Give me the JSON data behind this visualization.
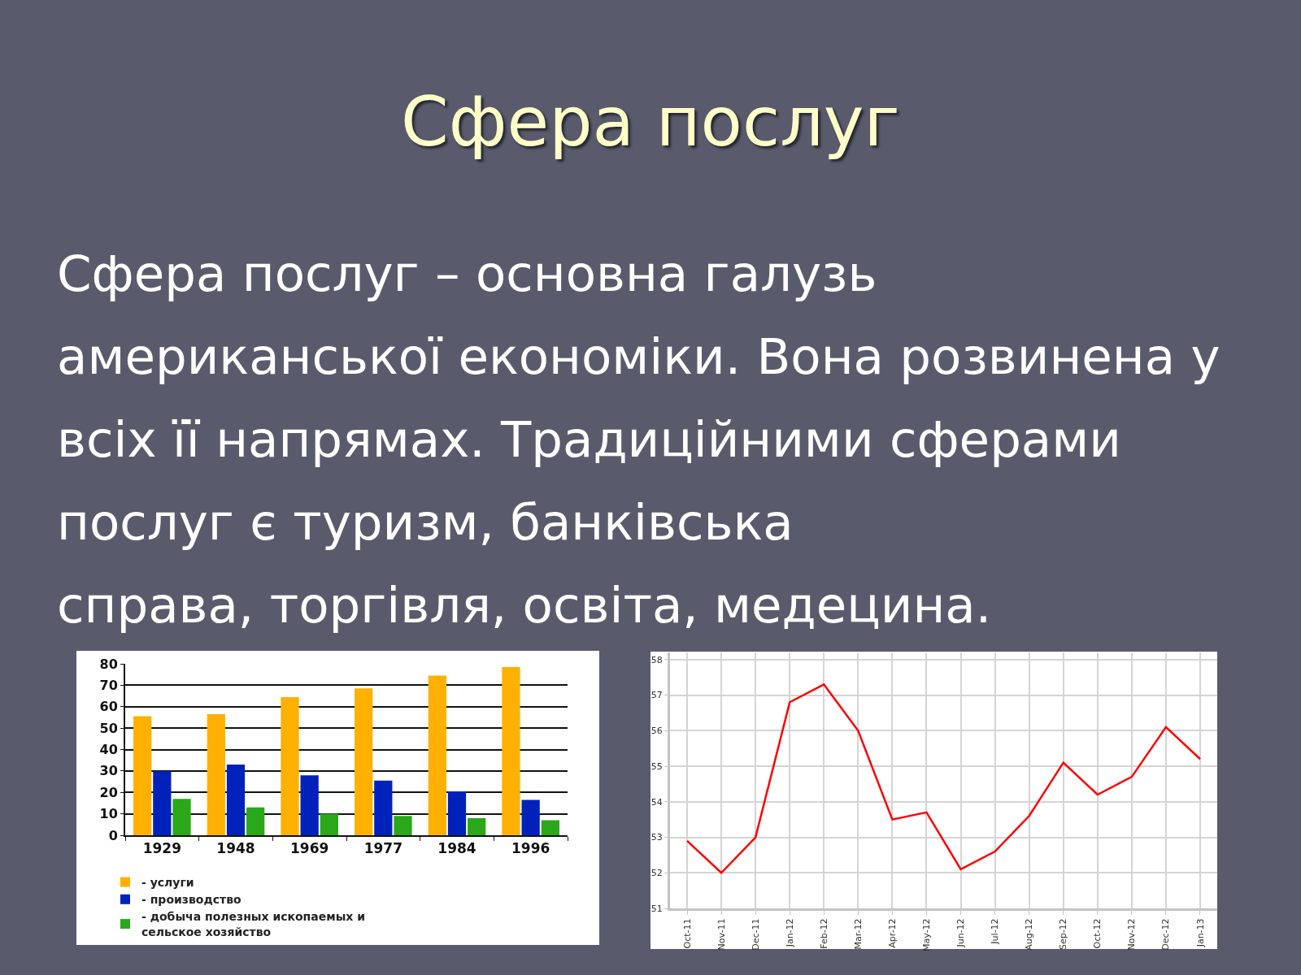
{
  "chart_data": [
    {
      "type": "other",
      "title": "Сфера послуг",
      "subtitle": "Сфера послуг – основна галузь\nамериканської економіки. Вона розвинена у\nвсіх її напрямах. Традиційними сферами\nпослуг є туризм, банківська\nсправа, торгівля, освіта, медецина."
    },
    {
      "type": "bar",
      "categories": [
        "1929",
        "1948",
        "1969",
        "1977",
        "1984",
        "1996"
      ],
      "series": [
        {
          "name": "- услуги",
          "color": "#ffb000",
          "values": [
            55.5,
            56.5,
            64.5,
            68.5,
            74.5,
            78.5
          ]
        },
        {
          "name": "- производство",
          "color": "#0022bb",
          "values": [
            30,
            33,
            28,
            25.5,
            20.5,
            16.5
          ]
        },
        {
          "name": "- добыча полезных ископаемых и\nсельское хозяйство",
          "color": "#2aa81a",
          "values": [
            17,
            13,
            10,
            9,
            8,
            7
          ]
        }
      ],
      "ylim": [
        0,
        80
      ],
      "yticks": [
        0,
        10,
        20,
        30,
        40,
        50,
        60,
        70,
        80
      ],
      "grid": "y",
      "legend": "bottom"
    },
    {
      "type": "line",
      "categories": [
        "Oct-11",
        "Nov-11",
        "Dec-11",
        "Jan-12",
        "Feb-12",
        "Mar-12",
        "Apr-12",
        "May-12",
        "Jun-12",
        "Jul-12",
        "Aug-12",
        "Sep-12",
        "Oct-12",
        "Nov-12",
        "Dec-12",
        "Jan-13"
      ],
      "series": [
        {
          "color": "#ff0000",
          "values": [
            52.9,
            52.0,
            53.0,
            56.8,
            57.3,
            56.0,
            53.5,
            53.7,
            52.1,
            52.6,
            53.6,
            55.1,
            54.2,
            54.7,
            56.1,
            55.2
          ]
        }
      ],
      "ylim": [
        51,
        58.2
      ],
      "yticks": [
        51,
        52,
        53,
        54,
        55,
        56,
        57,
        58
      ],
      "grid": true,
      "marker": "none",
      "line_style": "solid"
    }
  ]
}
